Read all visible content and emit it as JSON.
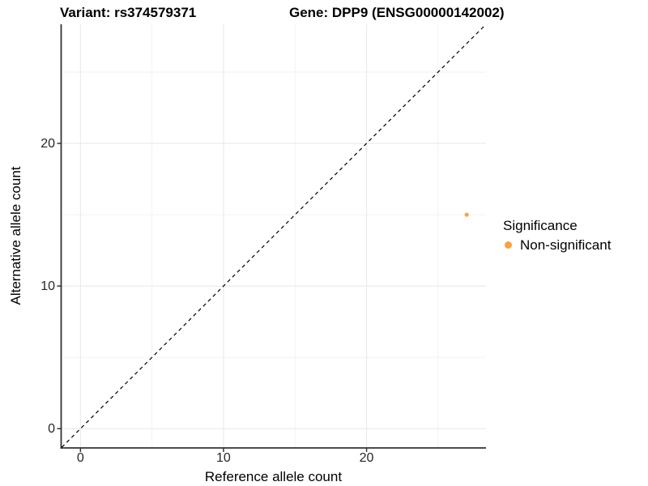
{
  "chart_data": {
    "type": "scatter",
    "title_left": "Variant: rs374579371",
    "title_right": "Gene: DPP9 (ENSG00000142002)",
    "xlabel": "Reference allele count",
    "ylabel": "Alternative allele count",
    "xlim": [
      -1.35,
      28.35
    ],
    "ylim": [
      -1.35,
      28.35
    ],
    "x_ticks": [
      0,
      10,
      20
    ],
    "y_ticks": [
      0,
      10,
      20
    ],
    "x_minor_gridlines": [
      5,
      15,
      25
    ],
    "y_minor_gridlines": [
      5,
      15,
      25
    ],
    "grid": "major and minor horizontal/vertical gridlines, light gray on white",
    "reference_line": {
      "type": "identity",
      "slope": 1,
      "intercept": 0,
      "style": "dashed",
      "color": "#000000"
    },
    "series": [
      {
        "name": "Non-significant",
        "color": "#F9A242",
        "points": [
          {
            "x": 27,
            "y": 15
          }
        ]
      }
    ],
    "legend": {
      "title": "Significance",
      "position": "right",
      "items": [
        {
          "label": "Non-significant",
          "color": "#F9A242"
        }
      ]
    }
  },
  "colors": {
    "background": "#FFFFFF",
    "axis_line": "#333333",
    "grid_major": "#E7E7E7",
    "grid_minor": "#F2F2F2",
    "tick_text": "#262626",
    "title_text": "#000000",
    "point_orange": "#F9A242"
  }
}
